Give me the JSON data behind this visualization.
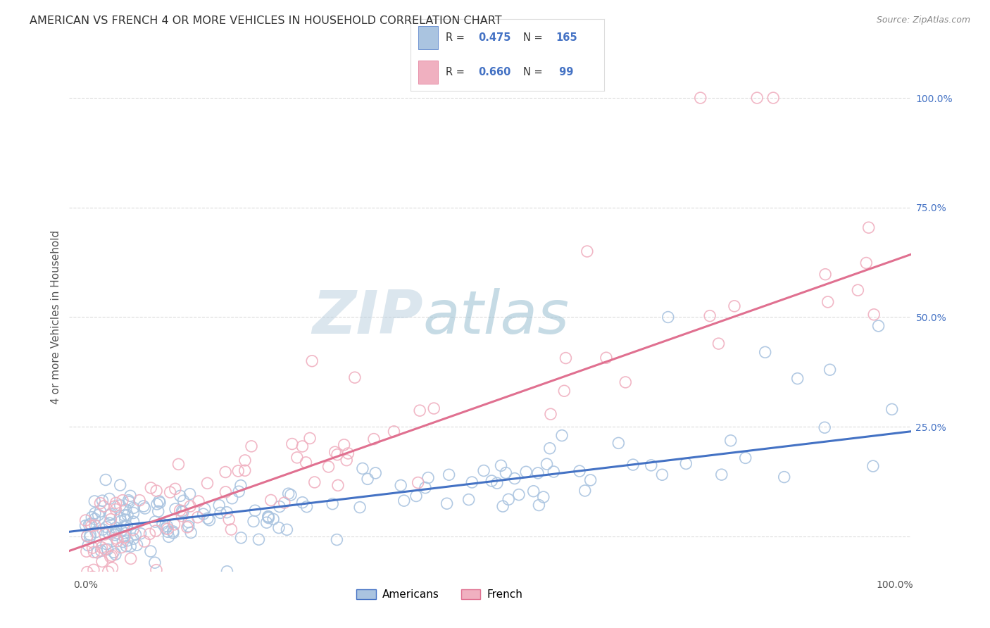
{
  "title": "AMERICAN VS FRENCH 4 OR MORE VEHICLES IN HOUSEHOLD CORRELATION CHART",
  "source": "Source: ZipAtlas.com",
  "ylabel": "4 or more Vehicles in Household",
  "americans_R": 0.475,
  "americans_N": 165,
  "french_R": 0.66,
  "french_N": 99,
  "americans_color": "#aac4e0",
  "french_color": "#f0b0c0",
  "americans_line_color": "#4472c4",
  "french_line_color": "#e07090",
  "legend_label_americans": "Americans",
  "legend_label_french": "French",
  "watermark_zip": "ZIP",
  "watermark_atlas": "atlas",
  "background_color": "#ffffff",
  "grid_color": "#cccccc",
  "title_color": "#333333",
  "source_color": "#888888",
  "right_tick_color": "#4472c4",
  "am_slope": 0.22,
  "am_intercept": 1.5,
  "fr_slope": 0.65,
  "fr_intercept": -2.0
}
